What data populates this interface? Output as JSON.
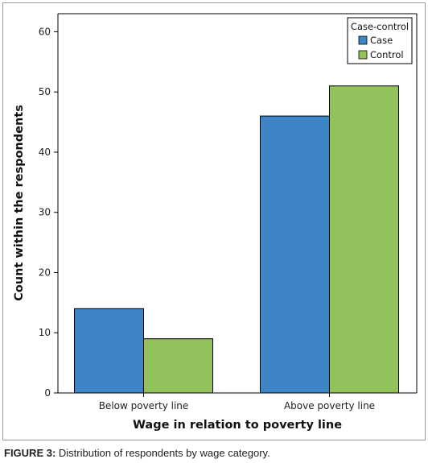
{
  "chart_data": {
    "type": "bar",
    "categories": [
      "Below poverty line",
      "Above poverty line"
    ],
    "series": [
      {
        "name": "Case",
        "values": [
          14,
          46
        ],
        "color": "#3d85c6"
      },
      {
        "name": "Control",
        "values": [
          9,
          51
        ],
        "color": "#93c15b"
      }
    ],
    "xlabel": "Wage in relation to poverty line",
    "ylabel": "Count within the respondents",
    "ylim": [
      0,
      63
    ],
    "yticks": [
      0,
      10,
      20,
      30,
      40,
      50,
      60
    ],
    "grid": false,
    "legend": {
      "title": "Case-control",
      "placement": "top-right"
    }
  },
  "caption": {
    "label": "FIGURE 3:",
    "text": " Distribution of respondents by wage category."
  }
}
